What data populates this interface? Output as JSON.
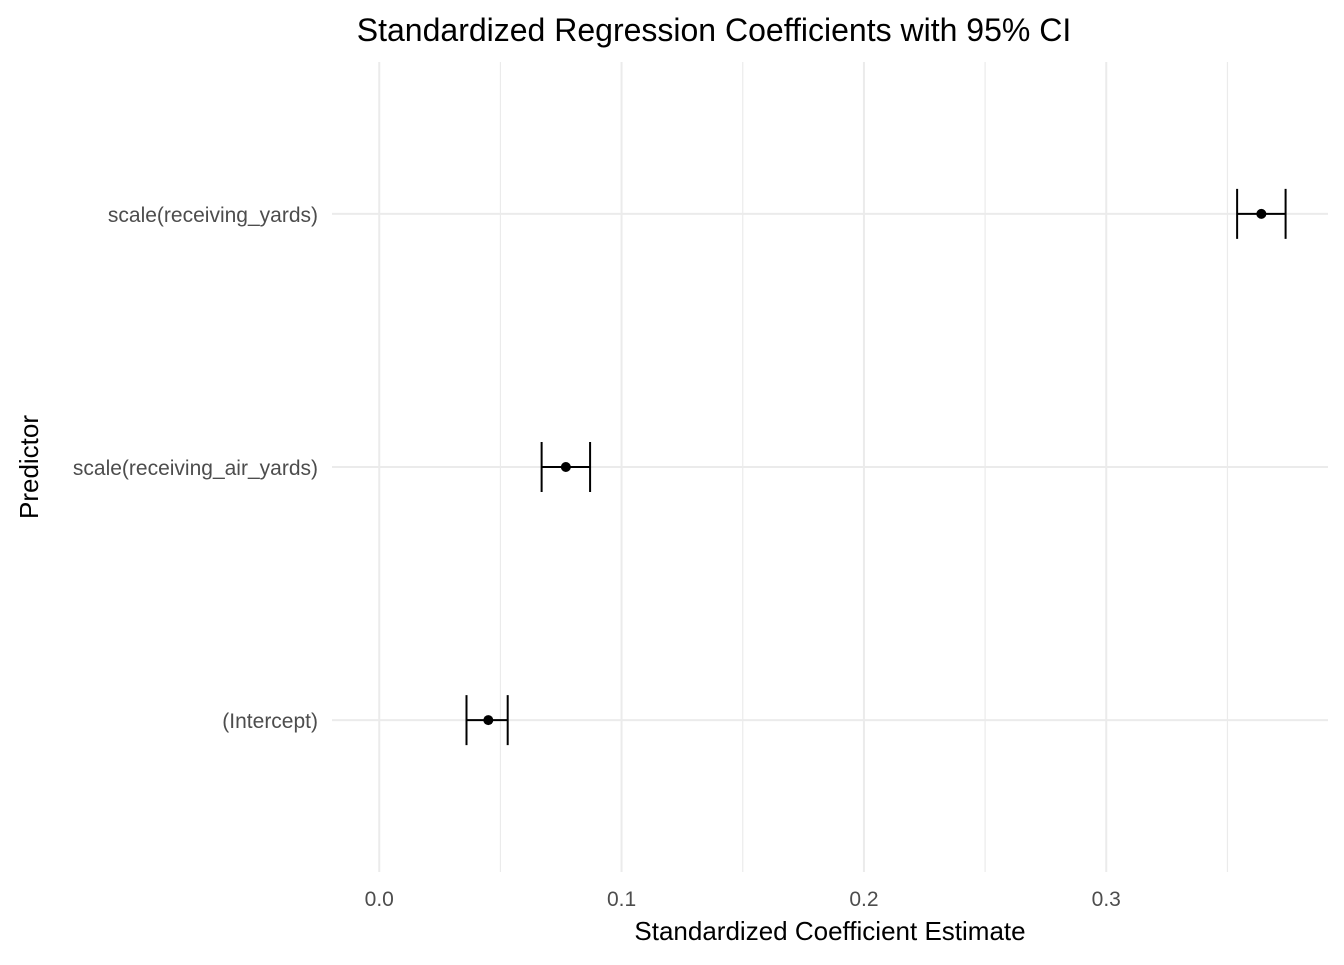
{
  "chart_data": {
    "type": "scatter",
    "title": "Standardized Regression Coefficients with 95% CI",
    "xlabel": "Standardized Coefficient Estimate",
    "ylabel": "Predictor",
    "categories": [
      "(Intercept)",
      "scale(receiving_air_yards)",
      "scale(receiving_yards)"
    ],
    "series": [
      {
        "estimates": [
          0.045,
          0.077,
          0.364
        ],
        "ci_low": [
          0.036,
          0.067,
          0.354
        ],
        "ci_high": [
          0.053,
          0.087,
          0.374
        ]
      }
    ],
    "xlim": [
      -0.0195,
      0.3915
    ],
    "xticks": [
      0.0,
      0.1,
      0.2,
      0.3
    ],
    "xtick_labels": [
      "0.0",
      "0.1",
      "0.2",
      "0.3"
    ],
    "xminor": [
      0.05,
      0.15,
      0.25,
      0.35
    ],
    "grid": true,
    "legend": "none",
    "colors": {
      "grid": "#ebebeb",
      "marks": "#000000",
      "tick_text": "#4d4d4d",
      "title_text": "#000000"
    }
  }
}
